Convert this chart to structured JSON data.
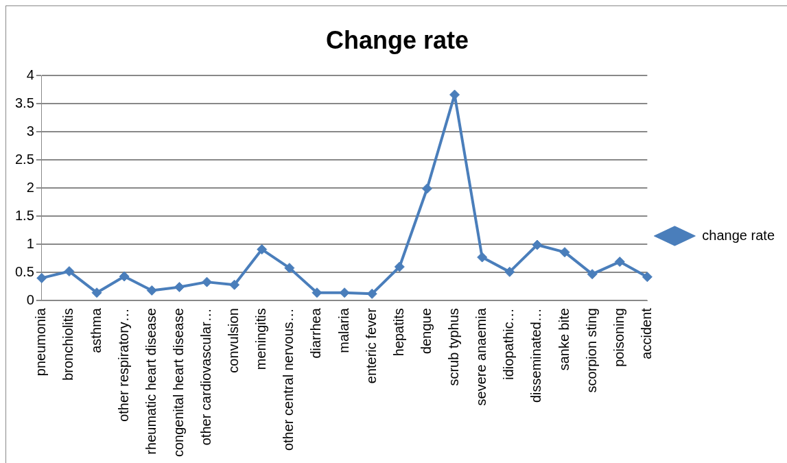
{
  "chart_data": {
    "type": "line",
    "title": "Change rate",
    "categories": [
      "pneumonia",
      "bronchiolitis",
      "asthma",
      "other respiratory…",
      "rheumatic heart disease",
      "congenital heart disease",
      "other cardiovascular…",
      "convulsion",
      "meningitis",
      "other central nervous…",
      "diarrhea",
      "malaria",
      "enteric fever",
      "hepatits",
      "dengue",
      "scrub typhus",
      "severe anaemia",
      "idiopathic…",
      "disseminated…",
      "sanke bite",
      "scorpion sting",
      "poisoning",
      "accident"
    ],
    "series": [
      {
        "name": "change rate",
        "color": "#4a7ebb",
        "values": [
          0.4,
          0.52,
          0.14,
          0.43,
          0.18,
          0.24,
          0.33,
          0.28,
          0.91,
          0.58,
          0.14,
          0.14,
          0.12,
          0.6,
          1.99,
          3.66,
          0.77,
          0.51,
          0.99,
          0.86,
          0.47,
          0.69,
          0.42
        ]
      }
    ],
    "ylim": [
      0,
      4
    ],
    "yticks": [
      0,
      0.5,
      1,
      1.5,
      2,
      2.5,
      3,
      3.5,
      4
    ],
    "grid": "y",
    "legend": "right",
    "marker": "diamond",
    "line_style": "solid"
  }
}
